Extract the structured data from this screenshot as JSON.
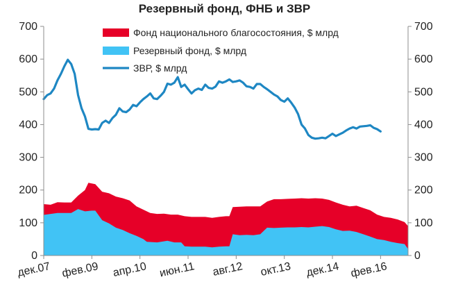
{
  "chart_data": {
    "type": "area",
    "title": "Резервный фонд, ФНБ и ЗВР",
    "xlabel": "",
    "ylabel": "",
    "ylim": [
      0,
      700
    ],
    "yticks": [
      0,
      100,
      200,
      300,
      400,
      500,
      600,
      700
    ],
    "y_axes": "left and right, identical scale",
    "grid": false,
    "legend_position": "top-center inside plot",
    "x_tick_labels": [
      "дек.07",
      "фев.09",
      "апр.10",
      "июн.11",
      "авг.12",
      "окт.13",
      "дек.14",
      "фев.16"
    ],
    "x_tick_months": [
      0,
      14,
      28,
      42,
      56,
      70,
      84,
      98
    ],
    "month_range": [
      0,
      106
    ],
    "series": [
      {
        "name": "Фонд национального благосостояния, $ млрд",
        "kind": "stacked-area",
        "color": "#e60028",
        "note": "values are totals (Резервный фонд + ФНБ)",
        "points": [
          [
            0,
            157
          ],
          [
            2,
            155
          ],
          [
            4,
            163
          ],
          [
            6,
            162
          ],
          [
            8,
            162
          ],
          [
            10,
            183
          ],
          [
            12,
            200
          ],
          [
            13,
            222
          ],
          [
            15,
            218
          ],
          [
            17,
            195
          ],
          [
            19,
            190
          ],
          [
            21,
            180
          ],
          [
            23,
            175
          ],
          [
            25,
            168
          ],
          [
            27,
            150
          ],
          [
            29,
            140
          ],
          [
            31,
            130
          ],
          [
            33,
            127
          ],
          [
            35,
            128
          ],
          [
            37,
            125
          ],
          [
            39,
            125
          ],
          [
            41,
            120
          ],
          [
            43,
            118
          ],
          [
            45,
            118
          ],
          [
            47,
            118
          ],
          [
            49,
            115
          ],
          [
            51,
            118
          ],
          [
            53,
            120
          ],
          [
            54,
            120
          ],
          [
            55,
            148
          ],
          [
            57,
            149
          ],
          [
            59,
            150
          ],
          [
            61,
            150
          ],
          [
            63,
            150
          ],
          [
            65,
            165
          ],
          [
            67,
            172
          ],
          [
            69,
            172
          ],
          [
            71,
            173
          ],
          [
            73,
            174
          ],
          [
            75,
            175
          ],
          [
            77,
            174
          ],
          [
            79,
            175
          ],
          [
            81,
            174
          ],
          [
            83,
            170
          ],
          [
            85,
            162
          ],
          [
            87,
            155
          ],
          [
            89,
            150
          ],
          [
            91,
            152
          ],
          [
            93,
            145
          ],
          [
            95,
            138
          ],
          [
            97,
            125
          ],
          [
            99,
            118
          ],
          [
            101,
            115
          ],
          [
            103,
            110
          ],
          [
            105,
            102
          ],
          [
            106,
            90
          ]
        ]
      },
      {
        "name": "Резервный фонд, $ млрд",
        "kind": "area",
        "color": "#41c3f5",
        "points": [
          [
            0,
            124
          ],
          [
            2,
            127
          ],
          [
            4,
            130
          ],
          [
            6,
            130
          ],
          [
            8,
            130
          ],
          [
            10,
            142
          ],
          [
            12,
            135
          ],
          [
            14,
            137
          ],
          [
            15,
            137
          ],
          [
            17,
            108
          ],
          [
            19,
            98
          ],
          [
            21,
            85
          ],
          [
            23,
            78
          ],
          [
            25,
            68
          ],
          [
            27,
            60
          ],
          [
            29,
            50
          ],
          [
            30,
            42
          ],
          [
            33,
            40
          ],
          [
            36,
            45
          ],
          [
            38,
            40
          ],
          [
            40,
            40
          ],
          [
            41,
            28
          ],
          [
            43,
            27
          ],
          [
            45,
            27
          ],
          [
            47,
            27
          ],
          [
            49,
            25
          ],
          [
            51,
            27
          ],
          [
            53,
            28
          ],
          [
            54,
            28
          ],
          [
            55,
            65
          ],
          [
            57,
            62
          ],
          [
            59,
            63
          ],
          [
            61,
            62
          ],
          [
            63,
            65
          ],
          [
            65,
            85
          ],
          [
            67,
            84
          ],
          [
            69,
            85
          ],
          [
            71,
            86
          ],
          [
            73,
            86
          ],
          [
            75,
            87
          ],
          [
            77,
            86
          ],
          [
            79,
            88
          ],
          [
            81,
            90
          ],
          [
            83,
            87
          ],
          [
            85,
            80
          ],
          [
            87,
            75
          ],
          [
            89,
            76
          ],
          [
            91,
            72
          ],
          [
            93,
            65
          ],
          [
            95,
            58
          ],
          [
            97,
            50
          ],
          [
            99,
            47
          ],
          [
            101,
            42
          ],
          [
            103,
            38
          ],
          [
            105,
            35
          ],
          [
            106,
            20
          ]
        ]
      },
      {
        "name": "ЗВР, $ млрд",
        "kind": "line",
        "color": "#1e87c3",
        "points": [
          [
            0,
            478
          ],
          [
            1,
            490
          ],
          [
            2,
            495
          ],
          [
            3,
            510
          ],
          [
            4,
            535
          ],
          [
            5,
            555
          ],
          [
            6,
            578
          ],
          [
            7,
            598
          ],
          [
            8,
            585
          ],
          [
            9,
            555
          ],
          [
            10,
            490
          ],
          [
            11,
            450
          ],
          [
            12,
            425
          ],
          [
            13,
            387
          ],
          [
            14,
            385
          ],
          [
            15,
            386
          ],
          [
            16,
            385
          ],
          [
            17,
            405
          ],
          [
            18,
            412
          ],
          [
            19,
            405
          ],
          [
            20,
            420
          ],
          [
            21,
            430
          ],
          [
            22,
            450
          ],
          [
            23,
            440
          ],
          [
            24,
            438
          ],
          [
            25,
            446
          ],
          [
            26,
            460
          ],
          [
            27,
            456
          ],
          [
            28,
            468
          ],
          [
            29,
            478
          ],
          [
            30,
            486
          ],
          [
            31,
            495
          ],
          [
            32,
            480
          ],
          [
            33,
            478
          ],
          [
            34,
            488
          ],
          [
            35,
            500
          ],
          [
            36,
            525
          ],
          [
            37,
            522
          ],
          [
            38,
            528
          ],
          [
            39,
            545
          ],
          [
            40,
            515
          ],
          [
            41,
            522
          ],
          [
            42,
            508
          ],
          [
            43,
            495
          ],
          [
            44,
            505
          ],
          [
            45,
            510
          ],
          [
            46,
            506
          ],
          [
            47,
            522
          ],
          [
            48,
            512
          ],
          [
            49,
            510
          ],
          [
            50,
            516
          ],
          [
            51,
            532
          ],
          [
            52,
            528
          ],
          [
            53,
            532
          ],
          [
            54,
            538
          ],
          [
            55,
            530
          ],
          [
            56,
            532
          ],
          [
            57,
            535
          ],
          [
            58,
            528
          ],
          [
            59,
            517
          ],
          [
            60,
            515
          ],
          [
            61,
            510
          ],
          [
            62,
            524
          ],
          [
            63,
            524
          ],
          [
            64,
            515
          ],
          [
            65,
            508
          ],
          [
            66,
            500
          ],
          [
            67,
            492
          ],
          [
            68,
            486
          ],
          [
            69,
            475
          ],
          [
            70,
            470
          ],
          [
            71,
            480
          ],
          [
            72,
            467
          ],
          [
            73,
            452
          ],
          [
            74,
            432
          ],
          [
            75,
            400
          ],
          [
            76,
            388
          ],
          [
            77,
            368
          ],
          [
            78,
            360
          ],
          [
            79,
            357
          ],
          [
            80,
            358
          ],
          [
            81,
            360
          ],
          [
            82,
            358
          ],
          [
            83,
            365
          ],
          [
            84,
            372
          ],
          [
            85,
            365
          ],
          [
            86,
            370
          ],
          [
            87,
            375
          ],
          [
            88,
            382
          ],
          [
            89,
            388
          ],
          [
            90,
            392
          ],
          [
            91,
            388
          ],
          [
            92,
            394
          ],
          [
            93,
            395
          ],
          [
            94,
            396
          ],
          [
            95,
            398
          ],
          [
            96,
            390
          ],
          [
            97,
            386
          ],
          [
            98,
            379
          ]
        ]
      }
    ]
  }
}
